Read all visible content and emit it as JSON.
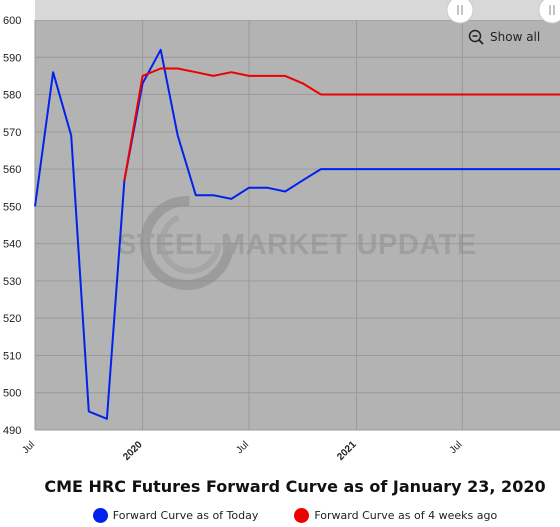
{
  "chart_data": {
    "type": "line",
    "title": "CME HRC Futures Forward Curve as of January 23, 2020",
    "watermark": "STEEL MARKET UPDATE",
    "ylim": [
      490,
      600
    ],
    "yticks": [
      490,
      500,
      510,
      520,
      530,
      540,
      550,
      560,
      570,
      580,
      590,
      600
    ],
    "xlim": [
      "2019-07-01",
      "2021-12-15"
    ],
    "xticks": [
      {
        "label": "Jul",
        "date": "2019-07-01",
        "bold": false
      },
      {
        "label": "2020",
        "date": "2020-01-01",
        "bold": true
      },
      {
        "label": "Jul",
        "date": "2020-07-01",
        "bold": false
      },
      {
        "label": "2021",
        "date": "2021-01-01",
        "bold": true
      },
      {
        "label": "Jul",
        "date": "2021-07-01",
        "bold": false
      }
    ],
    "grid": true,
    "background": "#b3b3b3",
    "series": [
      {
        "name": "Forward Curve as of Today",
        "color": "#0022ee",
        "points": [
          {
            "x": "2019-07-01",
            "y": 550
          },
          {
            "x": "2019-08-01",
            "y": 586
          },
          {
            "x": "2019-09-01",
            "y": 569
          },
          {
            "x": "2019-10-01",
            "y": 495
          },
          {
            "x": "2019-11-01",
            "y": 493
          },
          {
            "x": "2019-12-01",
            "y": 557
          },
          {
            "x": "2020-01-01",
            "y": 583
          },
          {
            "x": "2020-02-01",
            "y": 592
          },
          {
            "x": "2020-03-01",
            "y": 569
          },
          {
            "x": "2020-04-01",
            "y": 553
          },
          {
            "x": "2020-05-01",
            "y": 553
          },
          {
            "x": "2020-06-01",
            "y": 552
          },
          {
            "x": "2020-07-01",
            "y": 555
          },
          {
            "x": "2020-08-01",
            "y": 555
          },
          {
            "x": "2020-09-01",
            "y": 554
          },
          {
            "x": "2020-10-01",
            "y": 557
          },
          {
            "x": "2020-11-01",
            "y": 560
          },
          {
            "x": "2020-12-01",
            "y": 560
          },
          {
            "x": "2021-01-01",
            "y": 560
          },
          {
            "x": "2021-02-01",
            "y": 560
          },
          {
            "x": "2021-03-01",
            "y": 560
          },
          {
            "x": "2021-04-01",
            "y": 560
          },
          {
            "x": "2021-05-01",
            "y": 560
          },
          {
            "x": "2021-06-01",
            "y": 560
          },
          {
            "x": "2021-07-01",
            "y": 560
          },
          {
            "x": "2021-08-01",
            "y": 560
          },
          {
            "x": "2021-09-01",
            "y": 560
          },
          {
            "x": "2021-10-01",
            "y": 560
          },
          {
            "x": "2021-11-01",
            "y": 560
          },
          {
            "x": "2021-12-01",
            "y": 560
          },
          {
            "x": "2021-12-15",
            "y": 560
          }
        ]
      },
      {
        "name": "Forward Curve as of 4 weeks ago",
        "color": "#ee0000",
        "points": [
          {
            "x": "2019-12-01",
            "y": 557
          },
          {
            "x": "2020-01-01",
            "y": 585
          },
          {
            "x": "2020-02-01",
            "y": 587
          },
          {
            "x": "2020-03-01",
            "y": 587
          },
          {
            "x": "2020-04-01",
            "y": 586
          },
          {
            "x": "2020-05-01",
            "y": 585
          },
          {
            "x": "2020-06-01",
            "y": 586
          },
          {
            "x": "2020-07-01",
            "y": 585
          },
          {
            "x": "2020-08-01",
            "y": 585
          },
          {
            "x": "2020-09-01",
            "y": 585
          },
          {
            "x": "2020-10-01",
            "y": 583
          },
          {
            "x": "2020-11-01",
            "y": 580
          },
          {
            "x": "2020-12-01",
            "y": 580
          },
          {
            "x": "2021-01-01",
            "y": 580
          },
          {
            "x": "2021-02-01",
            "y": 580
          },
          {
            "x": "2021-03-01",
            "y": 580
          },
          {
            "x": "2021-04-01",
            "y": 580
          },
          {
            "x": "2021-05-01",
            "y": 580
          },
          {
            "x": "2021-06-01",
            "y": 580
          },
          {
            "x": "2021-07-01",
            "y": 580
          },
          {
            "x": "2021-08-01",
            "y": 580
          },
          {
            "x": "2021-09-01",
            "y": 580
          },
          {
            "x": "2021-10-01",
            "y": 580
          },
          {
            "x": "2021-11-01",
            "y": 580
          },
          {
            "x": "2021-12-01",
            "y": 580
          },
          {
            "x": "2021-12-15",
            "y": 580
          }
        ]
      }
    ]
  },
  "controls": {
    "show_all_label": "Show all",
    "zoom_icon": "zoom-out-icon",
    "navigator_handle_icon": "drag-handle-icon"
  },
  "legend": {
    "items": [
      {
        "label": "Forward Curve as of Today",
        "color": "#0022ee"
      },
      {
        "label": "Forward Curve as of 4 weeks ago",
        "color": "#ee0000"
      }
    ]
  }
}
